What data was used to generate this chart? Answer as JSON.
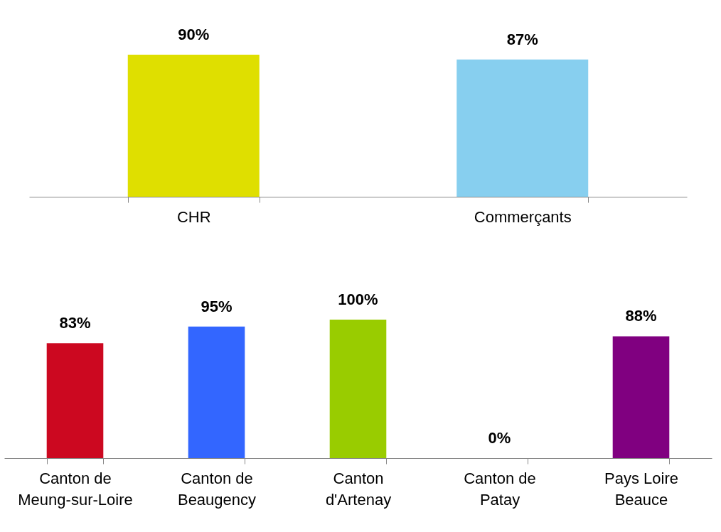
{
  "chart_data": [
    {
      "type": "bar",
      "categories": [
        "CHR",
        "Commerçants"
      ],
      "values": [
        90,
        87
      ],
      "colors": [
        "#dfdf00",
        "#87cfef"
      ],
      "value_labels": [
        "90%",
        "87%"
      ]
    },
    {
      "type": "bar",
      "categories": [
        "Canton de Meung-sur-Loire",
        "Canton de Beaugency",
        "Canton d'Artenay",
        "Canton de Patay",
        "Pays Loire Beauce"
      ],
      "values": [
        83,
        95,
        100,
        0,
        88
      ],
      "colors": [
        "#cc0820",
        "#3366ff",
        "#99cc00",
        "#99cc00",
        "#800080"
      ],
      "value_labels": [
        "83%",
        "95%",
        "100%",
        "0%",
        "88%"
      ]
    }
  ]
}
